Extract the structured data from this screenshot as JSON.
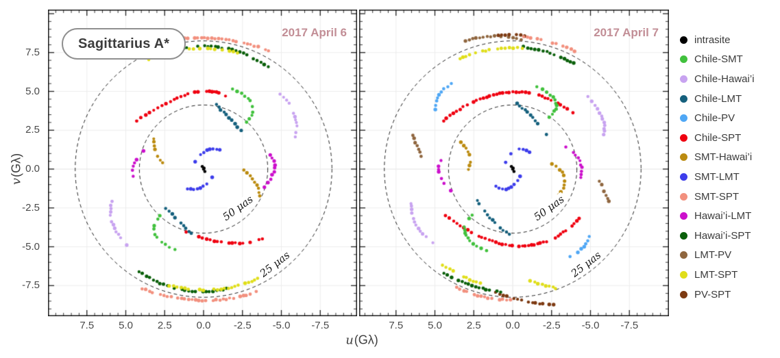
{
  "chart_data": {
    "type": "scatter",
    "title": "Sagittarius A*",
    "xlabel": {
      "var": "u",
      "unit": "(Gλ)"
    },
    "ylabel": {
      "var": "v",
      "unit": "(Gλ)"
    },
    "axis_ticks": {
      "values": [
        7.5,
        5.0,
        2.5,
        0.0,
        -2.5,
        -5.0,
        -7.5
      ],
      "labels": [
        "7.5",
        "5.0",
        "2.5",
        "0.0",
        "-2.5",
        "-5.0",
        "-7.5"
      ]
    },
    "xlim": [
      10.0,
      -9.9
    ],
    "ylim": [
      -9.5,
      10.3
    ],
    "grid": true,
    "units": "Gλ",
    "x_axis_inverted": true,
    "circles": [
      {
        "radius": 4.125,
        "label": "50 μas"
      },
      {
        "radius": 8.25,
        "label": "25 μas"
      }
    ],
    "legend": {
      "position": "right",
      "items": [
        {
          "label": "intrasite",
          "color": "#000000"
        },
        {
          "label": "Chile-SMT",
          "color": "#41c13d"
        },
        {
          "label": "Chile-Hawai’i",
          "color": "#c8a3f0"
        },
        {
          "label": "Chile-LMT",
          "color": "#15607d"
        },
        {
          "label": "Chile-PV",
          "color": "#4fa7f5"
        },
        {
          "label": "Chile-SPT",
          "color": "#ef0010"
        },
        {
          "label": "SMT-Hawai’i",
          "color": "#bb8b10"
        },
        {
          "label": "SMT-LMT",
          "color": "#3d3deb"
        },
        {
          "label": "SMT-SPT",
          "color": "#f2907e"
        },
        {
          "label": "Hawai’i-LMT",
          "color": "#cc10cc"
        },
        {
          "label": "Hawai’i-SPT",
          "color": "#0a5f0a"
        },
        {
          "label": "LMT-PV",
          "color": "#8f663f"
        },
        {
          "label": "LMT-SPT",
          "color": "#e0de1a"
        },
        {
          "label": "PV-SPT",
          "color": "#7d3a12"
        }
      ]
    },
    "panels": [
      {
        "date": "2017 April 6",
        "series": [
          {
            "name": "intrasite",
            "tracks": [
              {
                "mirror": false,
                "pts": [
                  [
                    0,
                    0
                  ]
                ]
              }
            ]
          },
          {
            "name": "SMT-SPT",
            "tracks": [
              {
                "mirror": true,
                "pts": [
                  [
                    3.4,
                    7.9
                  ],
                  [
                    -0.3,
                    8.45
                  ],
                  [
                    -4.2,
                    7.6
                  ]
                ]
              }
            ]
          },
          {
            "name": "Hawai’i-SPT",
            "tracks": [
              {
                "mirror": true,
                "pts": [
                  [
                    1.5,
                    7.7
                  ],
                  [
                    -1.3,
                    7.8
                  ],
                  [
                    -4.15,
                    6.6
                  ]
                ]
              }
            ]
          },
          {
            "name": "LMT-SPT",
            "tracks": [
              {
                "mirror": true,
                "pts": [
                  [
                    3.5,
                    7.05
                  ],
                  [
                    0.8,
                    7.75
                  ],
                  [
                    -2.2,
                    7.5
                  ]
                ]
              }
            ]
          },
          {
            "name": "Chile-SPT",
            "tracks": [
              {
                "mirror": false,
                "pts": [
                  [
                    4.3,
                    3.1
                  ],
                  [
                    0.9,
                    4.85
                  ],
                  [
                    -1.4,
                    4.7
                  ]
                ]
              },
              {
                "mirror": false,
                "pts": [
                  [
                    1.1,
                    -4.05
                  ],
                  [
                    -1.5,
                    -4.75
                  ],
                  [
                    -3.8,
                    -4.5
                  ]
                ]
              }
            ]
          },
          {
            "name": "Chile-Hawai’i",
            "tracks": [
              {
                "mirror": true,
                "pts": [
                  [
                    -4.95,
                    4.85
                  ],
                  [
                    -5.85,
                    3.5
                  ],
                  [
                    -5.9,
                    2.1
                  ]
                ]
              }
            ]
          },
          {
            "name": "Chile-SMT",
            "tracks": [
              {
                "mirror": true,
                "pts": [
                  [
                    -1.85,
                    5.15
                  ],
                  [
                    -3.1,
                    4.2
                  ],
                  [
                    -2.8,
                    3.0
                  ]
                ]
              }
            ]
          },
          {
            "name": "Chile-LMT",
            "tracks": [
              {
                "mirror": true,
                "pts": [
                  [
                    -0.8,
                    4.15
                  ],
                  [
                    -1.55,
                    3.4
                  ],
                  [
                    -2.4,
                    2.5
                  ]
                ]
              }
            ]
          },
          {
            "name": "SMT-Hawai’i",
            "tracks": [
              {
                "mirror": false,
                "pts": [
                  [
                    3.2,
                    1.95
                  ],
                  [
                    3.05,
                    1.05
                  ],
                  [
                    2.4,
                    0.15
                  ]
                ]
              },
              {
                "mirror": false,
                "pts": [
                  [
                    -2.6,
                    -0.05
                  ],
                  [
                    -3.3,
                    -0.85
                  ],
                  [
                    -3.6,
                    -1.7
                  ]
                ]
              }
            ]
          },
          {
            "name": "Hawai’i-LMT",
            "tracks": [
              {
                "mirror": true,
                "pts": [
                  [
                    -4.3,
                    0.9
                  ],
                  [
                    -4.55,
                    -0.05
                  ],
                  [
                    -3.9,
                    -1.15
                  ]
                ]
              }
            ]
          },
          {
            "name": "SMT-LMT",
            "tracks": [
              {
                "mirror": true,
                "pts": [
                  [
                    0.55,
                    0.5
                  ],
                  [
                    -0.2,
                    1.2
                  ],
                  [
                    -1.05,
                    1.25
                  ]
                ]
              }
            ]
          }
        ]
      },
      {
        "date": "2017 April 7",
        "series": [
          {
            "name": "intrasite",
            "tracks": [
              {
                "mirror": false,
                "pts": [
                  [
                    0,
                    0
                  ]
                ]
              }
            ]
          },
          {
            "name": "LMT-PV",
            "tracks": [
              {
                "mirror": false,
                "pts": [
                  [
                    3.0,
                    8.25
                  ],
                  [
                    1.2,
                    8.55
                  ],
                  [
                    -0.8,
                    8.25
                  ]
                ]
              },
              {
                "mirror": false,
                "pts": [
                  [
                    6.4,
                    2.2
                  ],
                  [
                    6.15,
                    1.5
                  ],
                  [
                    5.9,
                    0.85
                  ]
                ]
              },
              {
                "mirror": false,
                "pts": [
                  [
                    -5.6,
                    -0.8
                  ],
                  [
                    -5.9,
                    -1.45
                  ],
                  [
                    -6.15,
                    -2.1
                  ]
                ]
              }
            ]
          },
          {
            "name": "PV-SPT",
            "tracks": [
              {
                "mirror": false,
                "pts": [
                  [
                    1.2,
                    8.55
                  ],
                  [
                    0.1,
                    8.65
                  ],
                  [
                    -1.0,
                    8.55
                  ]
                ]
              },
              {
                "mirror": false,
                "pts": [
                  [
                    1.1,
                    -7.95
                  ],
                  [
                    -0.8,
                    -8.5
                  ],
                  [
                    -2.6,
                    -8.75
                  ]
                ]
              }
            ]
          },
          {
            "name": "SMT-SPT",
            "tracks": [
              {
                "mirror": false,
                "pts": [
                  [
                    -0.7,
                    8.5
                  ],
                  [
                    -2.3,
                    8.2
                  ],
                  [
                    -4.0,
                    7.6
                  ]
                ]
              },
              {
                "mirror": false,
                "pts": [
                  [
                    3.6,
                    -7.6
                  ],
                  [
                    1.8,
                    -8.25
                  ],
                  [
                    -0.1,
                    -8.4
                  ]
                ]
              }
            ]
          },
          {
            "name": "Hawai’i-SPT",
            "tracks": [
              {
                "mirror": false,
                "pts": [
                  [
                    -0.4,
                    7.9
                  ],
                  [
                    -2.3,
                    7.5
                  ],
                  [
                    -3.9,
                    6.8
                  ]
                ]
              },
              {
                "mirror": false,
                "pts": [
                  [
                    4.4,
                    -6.7
                  ],
                  [
                    2.6,
                    -7.5
                  ],
                  [
                    0.8,
                    -7.9
                  ]
                ]
              }
            ]
          },
          {
            "name": "LMT-SPT",
            "tracks": [
              {
                "mirror": false,
                "pts": [
                  [
                    3.4,
                    7.1
                  ],
                  [
                    1.6,
                    7.65
                  ],
                  [
                    -0.6,
                    7.8
                  ]
                ]
              },
              {
                "mirror": false,
                "pts": [
                  [
                    4.7,
                    -6.05
                  ],
                  [
                    3.4,
                    -6.8
                  ],
                  [
                    2.1,
                    -7.35
                  ]
                ]
              },
              {
                "mirror": false,
                "pts": [
                  [
                    -0.9,
                    -7.1
                  ],
                  [
                    -2.0,
                    -7.45
                  ],
                  [
                    -3.0,
                    -7.75
                  ]
                ]
              }
            ]
          },
          {
            "name": "Chile-SPT",
            "tracks": [
              {
                "mirror": false,
                "pts": [
                  [
                    4.45,
                    3.1
                  ],
                  [
                    0.0,
                    4.95
                  ],
                  [
                    -4.3,
                    3.3
                  ]
                ]
              },
              {
                "mirror": false,
                "pts": [
                  [
                    4.3,
                    -3.0
                  ],
                  [
                    -0.4,
                    -4.95
                  ],
                  [
                    -4.3,
                    -3.2
                  ]
                ]
              }
            ]
          },
          {
            "name": "Chile-Hawai’i",
            "tracks": [
              {
                "mirror": false,
                "pts": [
                  [
                    -4.85,
                    4.65
                  ],
                  [
                    -5.75,
                    3.3
                  ],
                  [
                    -5.85,
                    2.25
                  ]
                ]
              },
              {
                "mirror": false,
                "pts": [
                  [
                    6.5,
                    -2.2
                  ],
                  [
                    6.2,
                    -3.6
                  ],
                  [
                    4.9,
                    -4.9
                  ]
                ]
              }
            ]
          },
          {
            "name": "Chile-PV",
            "tracks": [
              {
                "mirror": true,
                "pts": [
                  [
                    3.7,
                    5.6
                  ],
                  [
                    4.65,
                    4.9
                  ],
                  [
                    5.0,
                    3.85
                  ]
                ]
              }
            ]
          },
          {
            "name": "Chile-SMT",
            "tracks": [
              {
                "mirror": false,
                "pts": [
                  [
                    -1.55,
                    5.3
                  ],
                  [
                    -2.75,
                    4.35
                  ],
                  [
                    -2.35,
                    3.35
                  ]
                ]
              },
              {
                "mirror": false,
                "pts": [
                  [
                    1.7,
                    -5.25
                  ],
                  [
                    3.05,
                    -4.2
                  ],
                  [
                    2.6,
                    -2.95
                  ]
                ]
              }
            ]
          },
          {
            "name": "Chile-LMT",
            "tracks": [
              {
                "mirror": true,
                "pts": [
                  [
                    -0.25,
                    4.2
                  ],
                  [
                    -1.3,
                    3.3
                  ],
                  [
                    -2.3,
                    2.0
                  ]
                ]
              }
            ]
          },
          {
            "name": "SMT-Hawai’i",
            "tracks": [
              {
                "mirror": false,
                "pts": [
                  [
                    3.3,
                    1.7
                  ],
                  [
                    2.75,
                    0.8
                  ],
                  [
                    2.9,
                    -0.25
                  ]
                ]
              },
              {
                "mirror": false,
                "pts": [
                  [
                    -2.55,
                    0.35
                  ],
                  [
                    -3.35,
                    -0.6
                  ],
                  [
                    -2.95,
                    -1.65
                  ]
                ]
              }
            ]
          },
          {
            "name": "Hawai’i-LMT",
            "tracks": [
              {
                "mirror": false,
                "pts": [
                  [
                    4.5,
                    0.7
                  ],
                  [
                    4.75,
                    -0.2
                  ],
                  [
                    3.95,
                    -1.4
                  ]
                ]
              },
              {
                "mirror": false,
                "pts": [
                  [
                    -3.45,
                    1.45
                  ],
                  [
                    -4.3,
                    0.5
                  ],
                  [
                    -4.35,
                    -0.55
                  ]
                ]
              }
            ]
          },
          {
            "name": "SMT-LMT",
            "tracks": [
              {
                "mirror": true,
                "pts": [
                  [
                    0.45,
                    0.45
                  ],
                  [
                    -0.25,
                    1.25
                  ],
                  [
                    -1.1,
                    1.1
                  ]
                ]
              }
            ]
          }
        ]
      }
    ]
  }
}
